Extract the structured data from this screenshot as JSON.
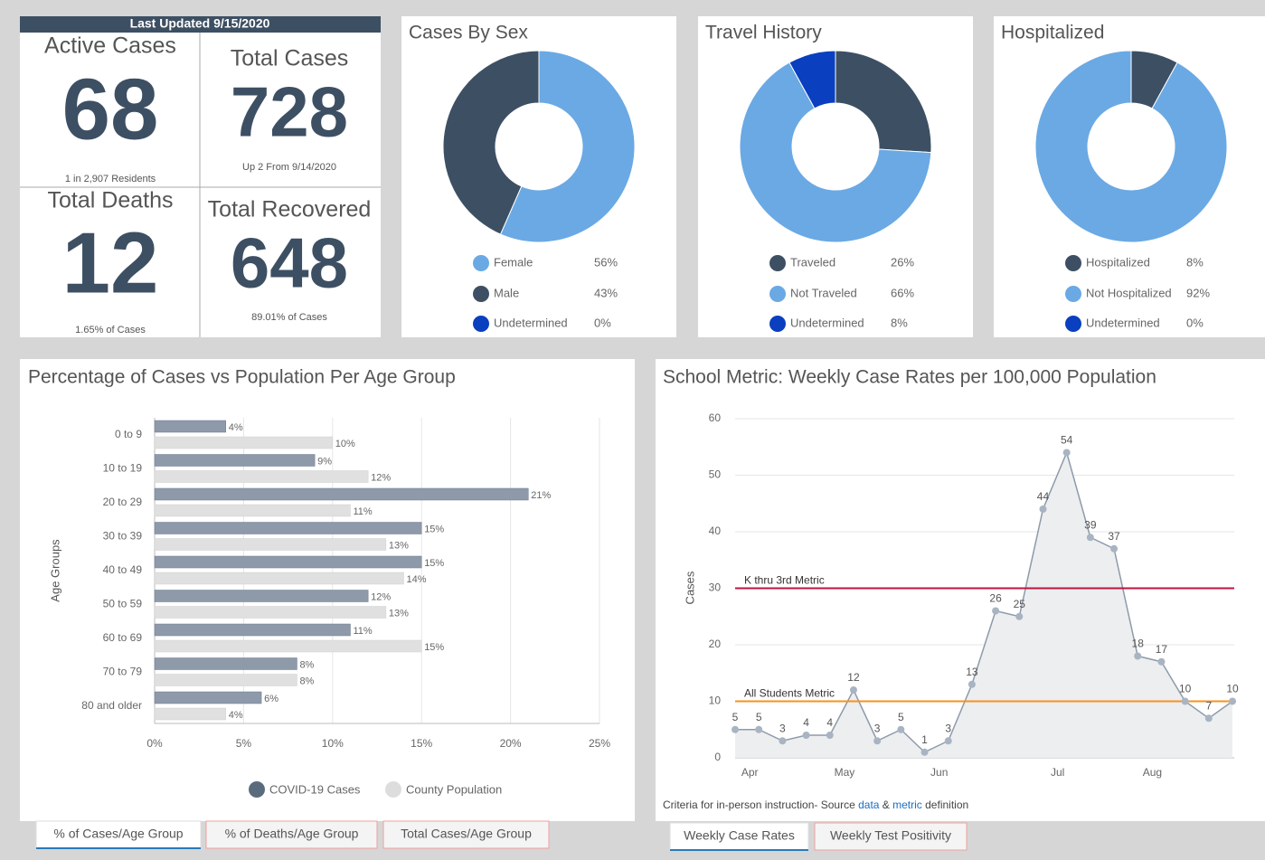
{
  "kpi": {
    "header": "Last Updated 9/15/2020",
    "cards": [
      {
        "title": "Active Cases",
        "value": 68,
        "note": "1 in 2,907 Residents"
      },
      {
        "title": "Total Cases",
        "value": 728,
        "note": "Up 2 From 9/14/2020"
      },
      {
        "title": "Total Deaths",
        "value": 12,
        "note": "1.65% of Cases"
      },
      {
        "title": "Total Recovered",
        "value": 648,
        "note": "89.01% of Cases"
      }
    ]
  },
  "chart_data": [
    {
      "type": "donut",
      "title": "Cases By Sex",
      "categories": [
        "Female",
        "Male",
        "Undetermined"
      ],
      "values": [
        56,
        43,
        0
      ],
      "value_labels": [
        "56%",
        "43%",
        "0%"
      ],
      "colors": [
        "#6aa9e4",
        "#3d4f63",
        "#0a3fbf"
      ]
    },
    {
      "type": "donut",
      "title": "Travel History",
      "categories": [
        "Traveled",
        "Not Traveled",
        "Undetermined"
      ],
      "values": [
        26,
        66,
        8
      ],
      "value_labels": [
        "26%",
        "66%",
        "8%"
      ],
      "colors": [
        "#3d4f63",
        "#6aa9e4",
        "#0a3fbf"
      ]
    },
    {
      "type": "donut",
      "title": "Hospitalized",
      "categories": [
        "Hospitalized",
        "Not Hospitalized",
        "Undetermined"
      ],
      "values": [
        8,
        92,
        0
      ],
      "value_labels": [
        "8%",
        "92%",
        "0%"
      ],
      "colors": [
        "#3d4f63",
        "#6aa9e4",
        "#0a3fbf"
      ]
    },
    {
      "type": "hbar",
      "title": "Percentage of Cases vs Population Per Age Group",
      "y_label": "Age Groups",
      "categories": [
        "0 to 9",
        "10 to 19",
        "20 to 29",
        "30 to 39",
        "40 to 49",
        "50 to 59",
        "60 to 69",
        "70 to 79",
        "80 and older"
      ],
      "series": [
        {
          "name": "COVID-19 Cases",
          "color": "#8e9aaa",
          "values": [
            4,
            9,
            21,
            15,
            15,
            12,
            11,
            8,
            6
          ],
          "value_labels": [
            "4%",
            "9%",
            "21%",
            "15%",
            "15%",
            "12%",
            "11%",
            "8%",
            "6%"
          ]
        },
        {
          "name": "County Population",
          "color": "#e0e0e0",
          "values": [
            10,
            12,
            11,
            13,
            14,
            13,
            15,
            8,
            4
          ],
          "value_labels": [
            "10%",
            "12%",
            "11%",
            "13%",
            "14%",
            "13%",
            "15%",
            "8%",
            "4%"
          ]
        }
      ],
      "xlim": [
        0,
        25
      ],
      "xticks": [
        {
          "value": 0,
          "label": "0%"
        },
        {
          "value": 5,
          "label": "5%"
        },
        {
          "value": 10,
          "label": "10%"
        },
        {
          "value": 15,
          "label": "15%"
        },
        {
          "value": 20,
          "label": "20%"
        },
        {
          "value": 25,
          "label": "25%"
        }
      ],
      "grid": true,
      "legend": "bottom",
      "tabs": [
        "% of Cases/Age Group",
        "% of Deaths/Age Group",
        "Total Cases/Age Group"
      ]
    },
    {
      "type": "area",
      "title": "School Metric: Weekly Case Rates per 100,000 Population",
      "y_label": "Cases",
      "categories": [
        null,
        "Apr",
        null,
        null,
        null,
        "May",
        null,
        null,
        null,
        "Jun",
        null,
        null,
        null,
        null,
        "Jul",
        null,
        null,
        null,
        "Aug",
        null,
        null,
        null
      ],
      "values": [
        5,
        5,
        3,
        4,
        4,
        12,
        3,
        5,
        1,
        3,
        13,
        26,
        25,
        44,
        54,
        39,
        37,
        18,
        17,
        10,
        7,
        10
      ],
      "color": "#8e9aaa",
      "fill": "#eceef0",
      "ylim": [
        0,
        60
      ],
      "yticks": [
        0,
        10,
        20,
        30,
        40,
        50,
        60
      ],
      "grid": true,
      "lines": [
        {
          "name": "K thru 3rd Metric",
          "value": 30,
          "color": "#c0143c"
        },
        {
          "name": "All Students Metric",
          "value": 10,
          "color": "#f7931e"
        }
      ],
      "footnote": [
        "Criteria for in-person instruction- Source ",
        "data",
        " & ",
        "metric",
        " definition"
      ],
      "tabs": [
        "Weekly Case Rates",
        "Weekly Test Positivity"
      ]
    }
  ]
}
